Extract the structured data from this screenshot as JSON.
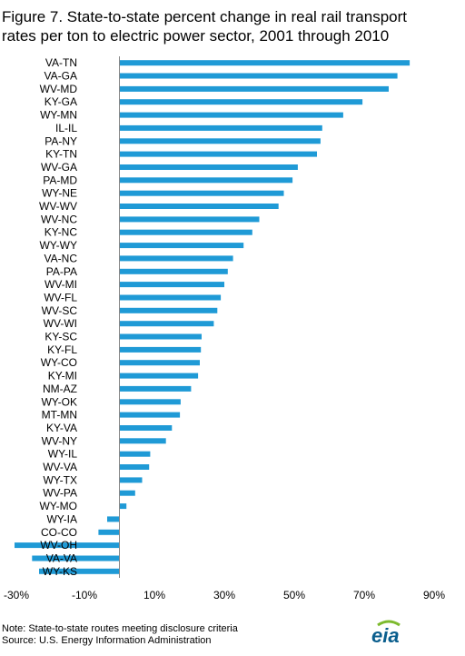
{
  "title_line1": "Figure 7. State-to-state percent change in real rail transport",
  "title_line2": "rates per ton to electric power sector, 2001 through 2010",
  "note": "Note: State-to-state routes meeting disclosure criteria",
  "source": "Source:  U.S. Energy Information Administration",
  "logo_text": "eia",
  "colors": {
    "bar": "#1f9ad6",
    "axis": "#888888",
    "logo_green": "#7dba2e",
    "logo_blue": "#0a5e8d"
  },
  "chart_data": {
    "type": "bar",
    "orientation": "horizontal",
    "categories": [
      "VA-TN",
      "VA-GA",
      "WV-MD",
      "KY-GA",
      "WY-MN",
      "IL-IL",
      "PA-NY",
      "KY-TN",
      "WV-GA",
      "PA-MD",
      "WY-NE",
      "WV-WV",
      "WV-NC",
      "KY-NC",
      "WY-WY",
      "VA-NC",
      "PA-PA",
      "WV-MI",
      "WV-FL",
      "WV-SC",
      "WV-WI",
      "KY-SC",
      "KY-FL",
      "WY-CO",
      "KY-MI",
      "NM-AZ",
      "WY-OK",
      "MT-MN",
      "KY-VA",
      "WV-NY",
      "WY-IL",
      "WV-VA",
      "WY-TX",
      "WV-PA",
      "WY-MO",
      "WY-IA",
      "CO-CO",
      "WV-OH",
      "VA-VA",
      "WY-KS"
    ],
    "values": [
      83,
      79.5,
      77,
      69.5,
      64,
      58,
      57.5,
      56.5,
      51,
      49.5,
      47,
      45.5,
      40,
      38,
      35.5,
      32.5,
      31,
      30,
      29,
      28,
      27,
      23.5,
      23.3,
      23,
      22.5,
      20.5,
      17.5,
      17.3,
      15,
      13.3,
      8.8,
      8.5,
      6.5,
      4.5,
      2,
      -3.5,
      -6,
      -30,
      -25,
      -23
    ],
    "xlim": [
      -30,
      90
    ],
    "xticks": [
      "-30%",
      "-10%",
      "10%",
      "30%",
      "50%",
      "70%",
      "90%"
    ],
    "xtick_values": [
      -30,
      -10,
      10,
      30,
      50,
      70,
      90
    ],
    "grid": false,
    "xlabel": "",
    "ylabel": ""
  }
}
